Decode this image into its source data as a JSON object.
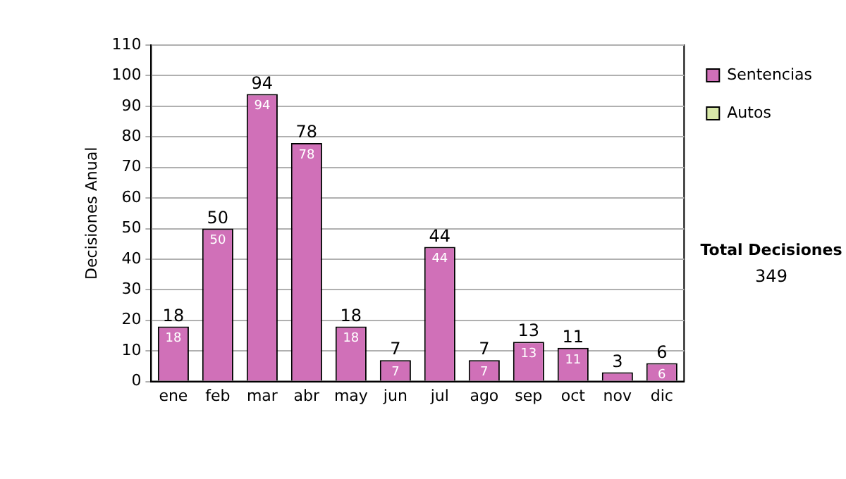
{
  "chart_data": {
    "type": "bar",
    "ylabel": "Decisiones Anual",
    "categories": [
      "ene",
      "feb",
      "mar",
      "abr",
      "may",
      "jun",
      "jul",
      "ago",
      "sep",
      "oct",
      "nov",
      "dic"
    ],
    "series": [
      {
        "name": "Sentencias",
        "color": "#d070b8",
        "values": [
          18,
          50,
          94,
          78,
          18,
          7,
          44,
          7,
          13,
          11,
          3,
          6
        ],
        "value_labels": [
          "18",
          "50",
          "94",
          "78",
          "18",
          "7",
          "44",
          "7",
          "13",
          "11",
          null,
          "6"
        ]
      },
      {
        "name": "Autos",
        "color": "#d8e8a8",
        "values": [
          null,
          null,
          null,
          null,
          null,
          null,
          null,
          null,
          null,
          null,
          null,
          null
        ]
      }
    ],
    "ylim": [
      0,
      110
    ],
    "yticks": [
      0,
      10,
      20,
      30,
      40,
      50,
      60,
      70,
      80,
      90,
      100,
      110
    ],
    "totals": [
      "18",
      "50",
      "94",
      "78",
      "18",
      "7",
      "44",
      "7",
      "13",
      "11",
      "3",
      "6"
    ],
    "grid": "y",
    "legend": "right",
    "annotations": [
      "Total Decisiones",
      "349"
    ]
  }
}
